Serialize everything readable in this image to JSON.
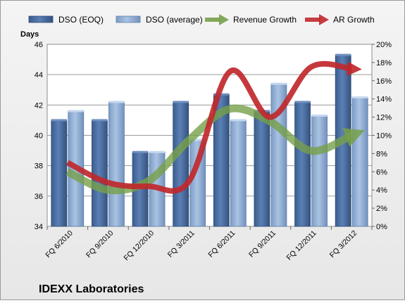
{
  "chart_data": {
    "type": "bar",
    "title": "IDEXX Laboratories",
    "ylabel_left": "Days",
    "ylim_left": [
      34,
      46
    ],
    "yticks_left": [
      "34",
      "36",
      "38",
      "40",
      "42",
      "44",
      "46"
    ],
    "ylim_right": [
      0,
      20
    ],
    "yticks_right": [
      "0%",
      "2%",
      "4%",
      "6%",
      "8%",
      "10%",
      "12%",
      "14%",
      "16%",
      "18%",
      "20%"
    ],
    "categories": [
      "FQ 6/2010",
      "FQ 9/2010",
      "FQ 12/2010",
      "FQ 3/2011",
      "FQ 6/2011",
      "FQ 9/2011",
      "FQ 12/2011",
      "FQ 3/2012"
    ],
    "grid": true,
    "legend_position": "top",
    "series": [
      {
        "name": "DSO (EOQ)",
        "type": "bar",
        "axis": "left",
        "color": "#4a6fa5",
        "values": [
          41.0,
          41.0,
          38.9,
          42.2,
          42.7,
          41.6,
          42.2,
          45.3
        ]
      },
      {
        "name": "DSO (average)",
        "type": "bar",
        "axis": "left",
        "color": "#95b3d7",
        "values": [
          41.6,
          42.2,
          38.9,
          39.7,
          41.0,
          43.4,
          41.3,
          42.5
        ]
      },
      {
        "name": "Revenue Growth",
        "type": "line",
        "axis": "right",
        "color": "#77a04a",
        "values": [
          6.0,
          4.0,
          5.0,
          9.5,
          12.9,
          11.5,
          8.3,
          10.0
        ]
      },
      {
        "name": "AR Growth",
        "type": "line",
        "axis": "right",
        "color": "#c0282c",
        "values": [
          7.0,
          4.8,
          4.4,
          5.0,
          17.0,
          12.0,
          17.5,
          17.3
        ]
      }
    ]
  }
}
